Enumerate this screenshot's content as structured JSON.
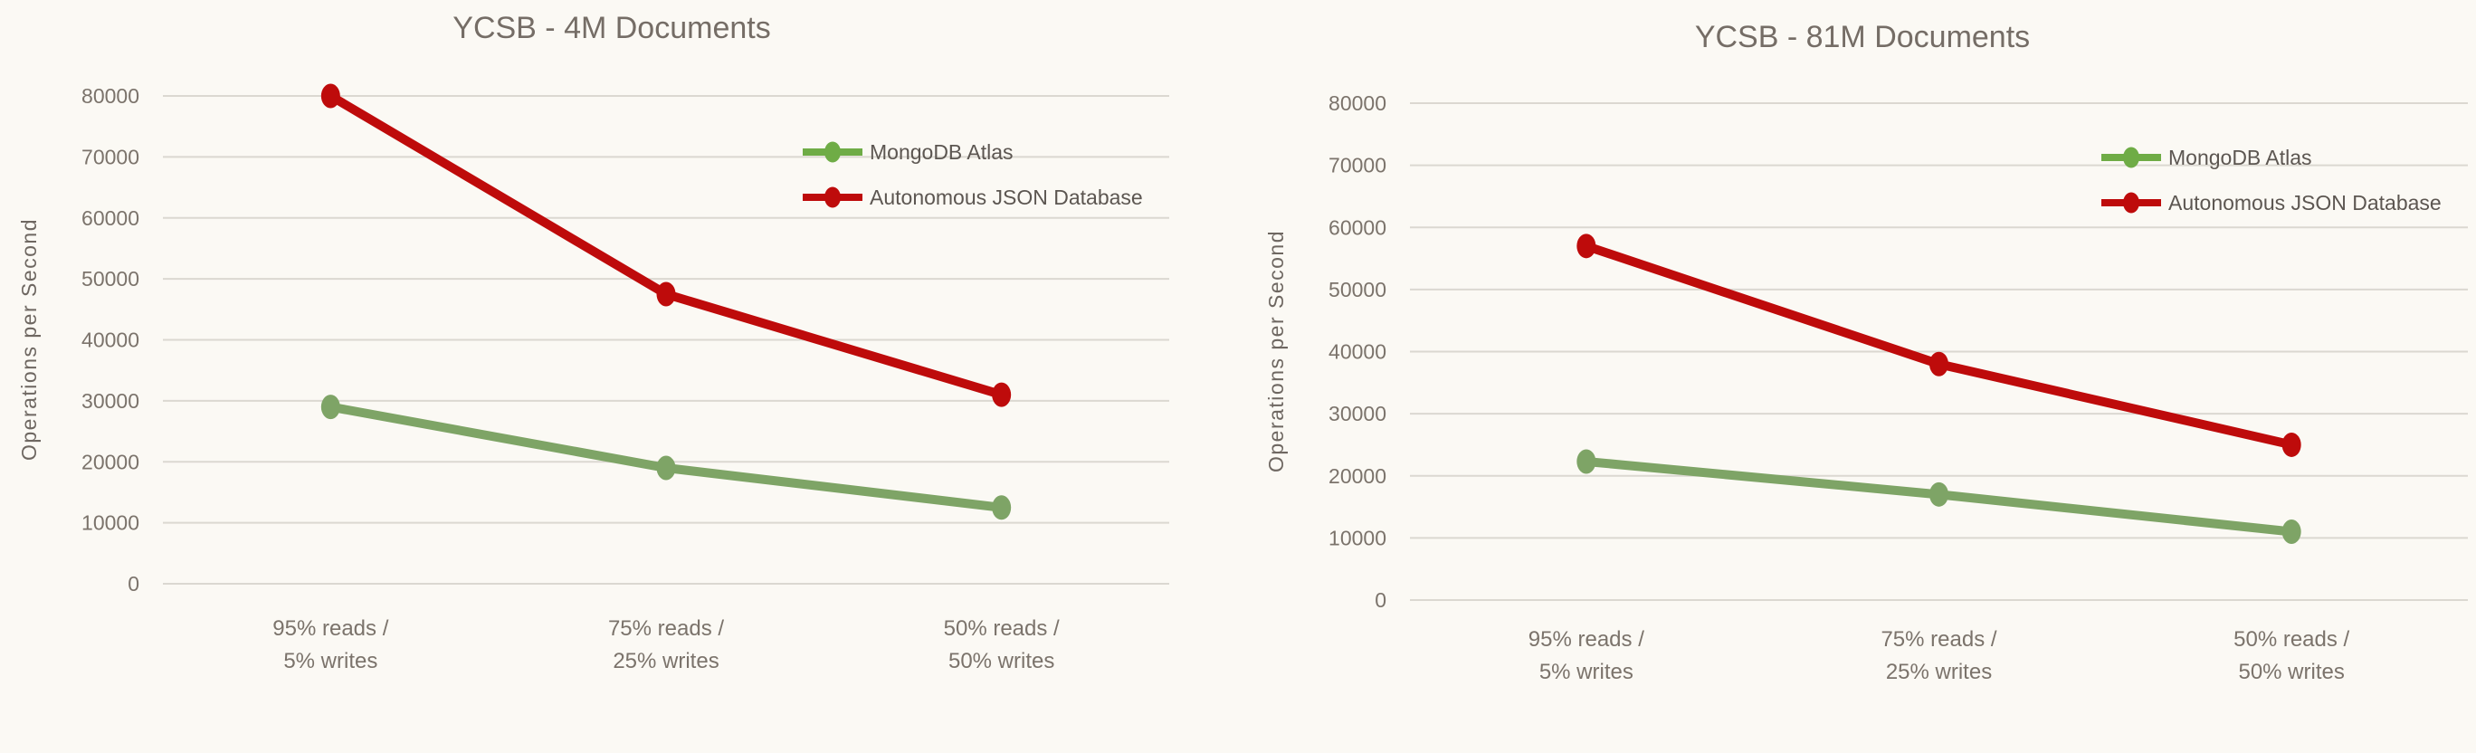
{
  "colors": {
    "background": "#FBF9F4",
    "gridline": "#DBD8D1",
    "axis_text": "#7B736B",
    "title_text": "#756D66",
    "legend_text": "#5C5651",
    "ylabel_text": "#6E6761"
  },
  "chart_data": [
    {
      "type": "line",
      "title": "YCSB - 4M Documents",
      "ylabel": "Operations per Second",
      "xlabel": "",
      "ylim": [
        0,
        80000
      ],
      "ytick_interval": 10000,
      "yticks": [
        "0",
        "10000",
        "20000",
        "30000",
        "40000",
        "50000",
        "60000",
        "70000",
        "80000"
      ],
      "grid": true,
      "legend_position": "inside-right",
      "categories": [
        "95% reads / 5% writes",
        "75% reads / 25% writes",
        "50% reads / 50% writes"
      ],
      "categories_lines": [
        [
          "95% reads /",
          "5% writes"
        ],
        [
          "75% reads /",
          "25% writes"
        ],
        [
          "50% reads /",
          "50% writes"
        ]
      ],
      "series": [
        {
          "name": "MongoDB Atlas",
          "color": "#7EA466",
          "legend_color": "#6FAC46",
          "values": [
            29000,
            19000,
            12500
          ]
        },
        {
          "name": "Autonomous JSON Database",
          "color": "#BE0B0B",
          "legend_color": "#BE0B0B",
          "values": [
            80000,
            47500,
            31000
          ]
        }
      ]
    },
    {
      "type": "line",
      "title": "YCSB - 81M Documents",
      "ylabel": "Operations per Second",
      "xlabel": "",
      "ylim": [
        0,
        80000
      ],
      "ytick_interval": 10000,
      "yticks": [
        "0",
        "10000",
        "20000",
        "30000",
        "40000",
        "50000",
        "60000",
        "70000",
        "80000"
      ],
      "grid": true,
      "legend_position": "inside-right",
      "categories": [
        "95% reads / 5% writes",
        "75% reads / 25% writes",
        "50% reads / 50% writes"
      ],
      "categories_lines": [
        [
          "95% reads /",
          "5% writes"
        ],
        [
          "75% reads /",
          "25% writes"
        ],
        [
          "50% reads /",
          "50% writes"
        ]
      ],
      "series": [
        {
          "name": "MongoDB Atlas",
          "color": "#7EA466",
          "legend_color": "#6FAC46",
          "values": [
            22300,
            17000,
            11000
          ]
        },
        {
          "name": "Autonomous JSON Database",
          "color": "#BE0B0B",
          "legend_color": "#BE0B0B",
          "values": [
            57000,
            38000,
            25000
          ]
        }
      ]
    }
  ]
}
